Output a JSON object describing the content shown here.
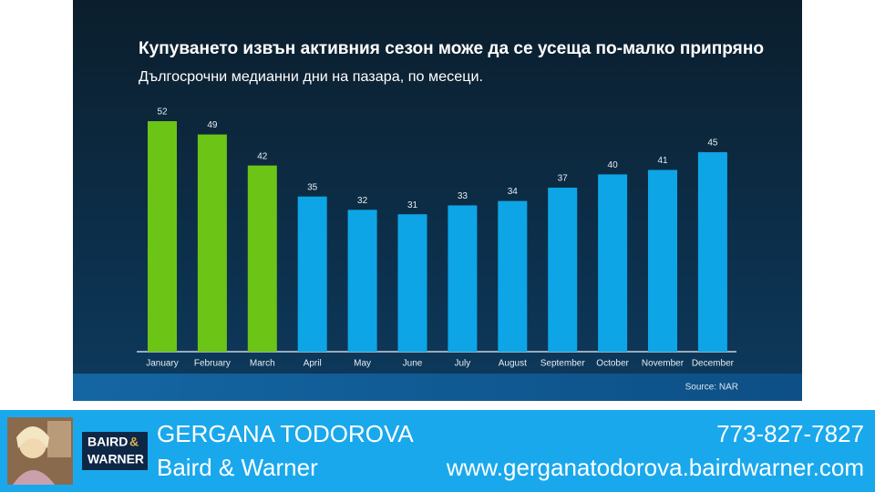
{
  "chart_data": {
    "type": "bar",
    "title": "Купуването извън активния сезон може да се усеща по-малко припряно",
    "subtitle": "Дългосрочни медианни дни на пазара, по месеци.",
    "categories": [
      "January",
      "February",
      "March",
      "April",
      "May",
      "June",
      "July",
      "August",
      "September",
      "October",
      "November",
      "December"
    ],
    "values": [
      52,
      49,
      42,
      35,
      32,
      31,
      33,
      34,
      37,
      40,
      41,
      45
    ],
    "colors": [
      "#6cc417",
      "#6cc417",
      "#6cc417",
      "#0ea5e6",
      "#0ea5e6",
      "#0ea5e6",
      "#0ea5e6",
      "#0ea5e6",
      "#0ea5e6",
      "#0ea5e6",
      "#0ea5e6",
      "#0ea5e6"
    ],
    "source": "Source: NAR"
  },
  "footer": {
    "name": "GERGANA TODOROVA",
    "phone": "773-827-7827",
    "company": "Baird & Warner",
    "url": "www.gerganatodorova.bairdwarner.com",
    "logo": {
      "line1": "BAIRD",
      "amp": "&",
      "line2": "WARNER"
    }
  }
}
